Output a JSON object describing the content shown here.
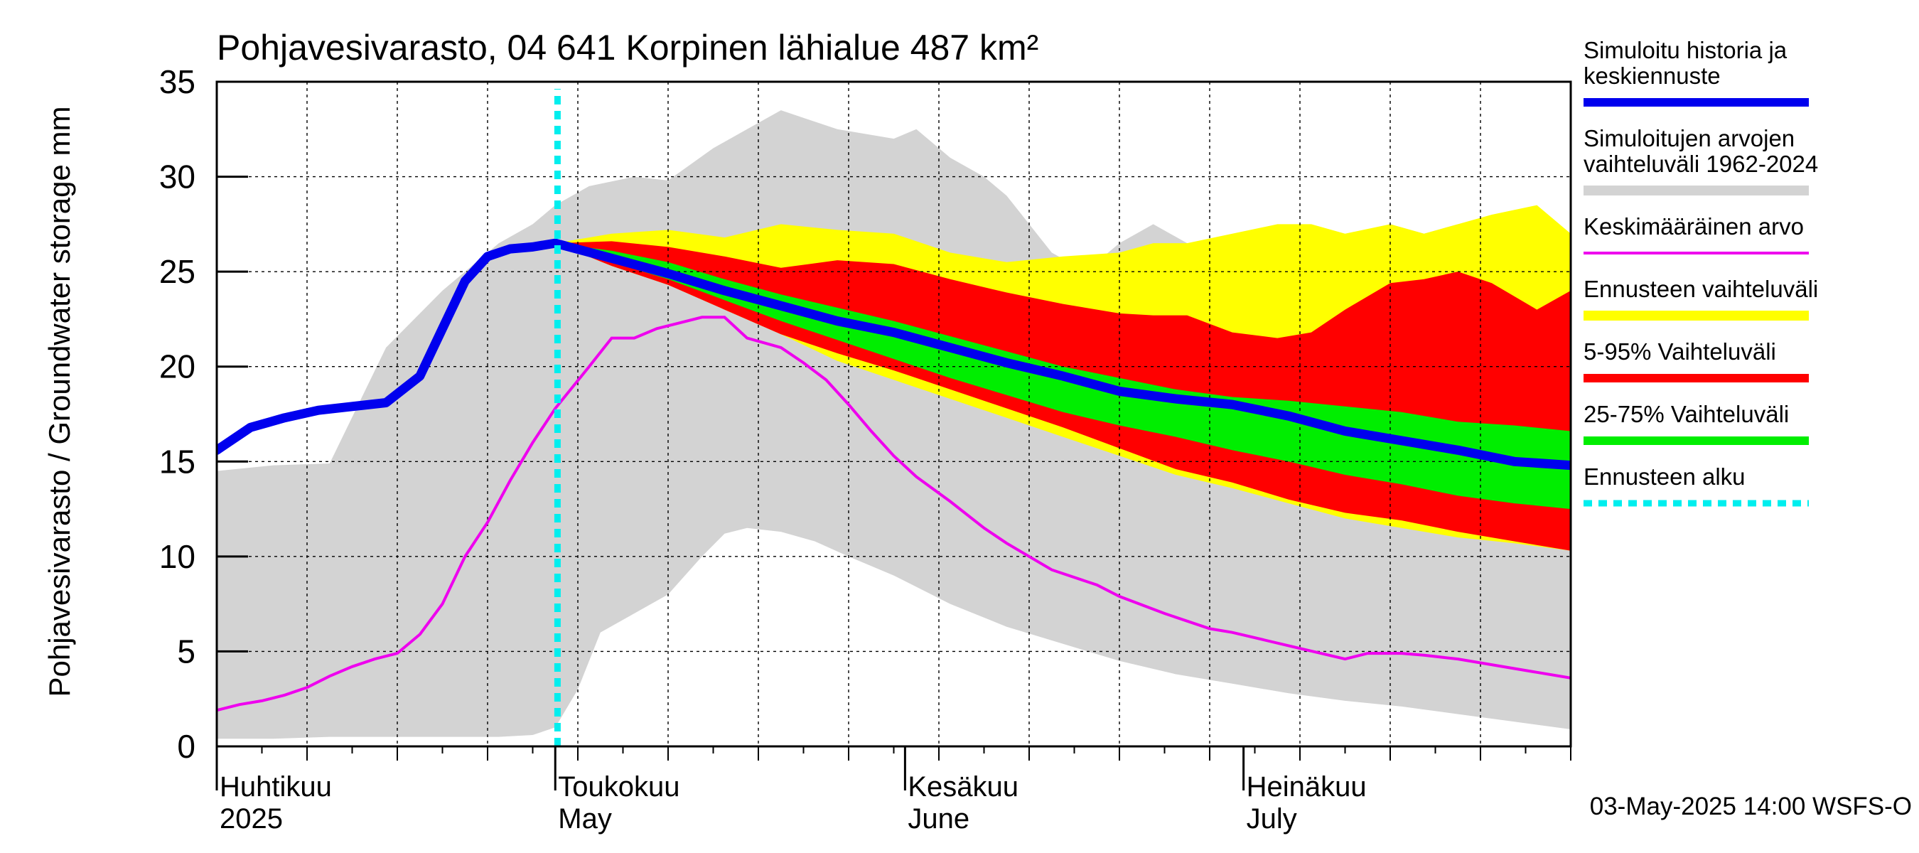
{
  "chart_data": {
    "type": "area",
    "title": "Pohjavesivarasto, 04 641 Korpinen lähialue 487 km²",
    "ylabel": "Pohjavesivarasto / Groundwater storage   mm",
    "ylim": [
      0,
      35
    ],
    "yticks": [
      0,
      5,
      10,
      15,
      20,
      25,
      30,
      35
    ],
    "xlim_day": [
      0,
      120
    ],
    "month_labels": [
      {
        "fi": "Huhtikuu",
        "en": "2025",
        "day": 0
      },
      {
        "fi": "Toukokuu",
        "en": "May",
        "day": 30
      },
      {
        "fi": "Kesäkuu",
        "en": "June",
        "day": 61
      },
      {
        "fi": "Heinäkuu",
        "en": "July",
        "day": 91
      }
    ],
    "forecast_start_day": 30.2,
    "footer": "03-May-2025 14:00 WSFS-O",
    "colors": {
      "history": "#0000ee",
      "range": "#d3d3d3",
      "mean": "#ee00ee",
      "forecast_range": "#ffff00",
      "p5_95": "#ff0000",
      "p25_75": "#00ee00",
      "forecast_start": "#00eeee",
      "grid": "#000000"
    },
    "legend": [
      {
        "label": "Simuloitu historia ja keskiennuste",
        "lines": [
          "Simuloitu historia ja",
          "keskiennuste"
        ],
        "color": "#0000ee",
        "style": "thick"
      },
      {
        "label": "Simuloitujen arvojen vaihteluväli 1962-2024",
        "lines": [
          "Simuloitujen arvojen",
          "vaihteluväli 1962-2024"
        ],
        "color": "#d3d3d3",
        "style": "band"
      },
      {
        "label": "Keskimääräinen arvo",
        "lines": [
          "Keskimääräinen arvo"
        ],
        "color": "#ee00ee",
        "style": "thin"
      },
      {
        "label": "Ennusteen vaihteluväli",
        "lines": [
          "Ennusteen vaihteluväli"
        ],
        "color": "#ffff00",
        "style": "band"
      },
      {
        "label": "5-95% Vaihteluväli",
        "lines": [
          "5-95% Vaihteluväli"
        ],
        "color": "#ff0000",
        "style": "thick"
      },
      {
        "label": "25-75% Vaihteluväli",
        "lines": [
          "25-75% Vaihteluväli"
        ],
        "color": "#00ee00",
        "style": "thick"
      },
      {
        "label": "Ennusteen alku",
        "lines": [
          "Ennusteen alku"
        ],
        "color": "#00eeee",
        "style": "dotted"
      }
    ],
    "series": {
      "range_upper": {
        "x": [
          0,
          5,
          10,
          15,
          20,
          25,
          28,
          30,
          33,
          37,
          40,
          44,
          47,
          50,
          55,
          60,
          62,
          65,
          68,
          70,
          74,
          77,
          80,
          83,
          86,
          90,
          94,
          97,
          100,
          104,
          107,
          110,
          113,
          117,
          120
        ],
        "y": [
          14.5,
          14.8,
          14.9,
          21,
          24,
          26.5,
          27.5,
          28.5,
          29.5,
          30,
          29.8,
          31.5,
          32.5,
          33.5,
          32.5,
          32,
          32.5,
          31,
          30,
          29,
          26,
          25,
          26.5,
          27.5,
          26.5,
          26,
          24,
          22,
          25,
          27.5,
          27,
          27.5,
          27.5,
          27.5,
          26.5
        ]
      },
      "range_lower": {
        "x": [
          0,
          5,
          10,
          15,
          20,
          25,
          28,
          30,
          32,
          34,
          37,
          40,
          43,
          45,
          47,
          50,
          53,
          56,
          60,
          65,
          70,
          75,
          80,
          85,
          90,
          95,
          100,
          105,
          110,
          115,
          120
        ],
        "y": [
          0.4,
          0.4,
          0.5,
          0.5,
          0.5,
          0.5,
          0.6,
          1,
          3,
          6,
          7,
          8,
          10,
          11.2,
          11.5,
          11.3,
          10.8,
          10,
          9,
          7.5,
          6.3,
          5.4,
          4.5,
          3.8,
          3.3,
          2.8,
          2.4,
          2.1,
          1.7,
          1.3,
          0.9
        ]
      },
      "forecast_upper": {
        "x": [
          30,
          35,
          40,
          45,
          50,
          55,
          60,
          65,
          70,
          75,
          80,
          83,
          86,
          90,
          94,
          97,
          100,
          104,
          107,
          110,
          113,
          117,
          120
        ],
        "y": [
          26.5,
          27,
          27.2,
          26.8,
          27.5,
          27.2,
          27,
          26,
          25.5,
          25.8,
          26,
          26.5,
          26.5,
          27,
          27.5,
          27.5,
          27,
          27.5,
          27,
          27.5,
          28,
          28.5,
          27
        ]
      },
      "p95": {
        "x": [
          30,
          35,
          40,
          45,
          50,
          55,
          60,
          65,
          70,
          75,
          80,
          83,
          86,
          90,
          94,
          97,
          100,
          104,
          107,
          110,
          113,
          117,
          120
        ],
        "y": [
          26.5,
          26.6,
          26.3,
          25.8,
          25.2,
          25.6,
          25.4,
          24.6,
          23.9,
          23.3,
          22.8,
          22.7,
          22.7,
          21.8,
          21.5,
          21.8,
          23.0,
          24.4,
          24.6,
          25.0,
          24.4,
          23.0,
          24.0
        ]
      },
      "p75": {
        "x": [
          30,
          35,
          40,
          45,
          50,
          55,
          60,
          65,
          70,
          75,
          80,
          85,
          90,
          95,
          100,
          105,
          110,
          115,
          120
        ],
        "y": [
          26.5,
          26.1,
          25.5,
          24.6,
          23.8,
          23.1,
          22.4,
          21.6,
          20.8,
          20.0,
          19.4,
          18.8,
          18.4,
          18.2,
          17.9,
          17.6,
          17.1,
          16.9,
          16.6
        ]
      },
      "median": {
        "x": [
          0,
          3,
          6,
          9,
          12,
          15,
          18,
          20,
          22,
          24,
          26,
          28,
          30,
          35,
          40,
          45,
          50,
          55,
          60,
          65,
          70,
          75,
          80,
          85,
          90,
          95,
          100,
          105,
          110,
          115,
          120
        ],
        "y": [
          15.6,
          16.8,
          17.3,
          17.7,
          17.9,
          18.1,
          19.5,
          22.0,
          24.5,
          25.8,
          26.2,
          26.3,
          26.5,
          25.7,
          24.9,
          24.0,
          23.2,
          22.4,
          21.8,
          21.0,
          20.2,
          19.5,
          18.7,
          18.3,
          18.0,
          17.4,
          16.6,
          16.1,
          15.6,
          15.0,
          14.8
        ]
      },
      "p25": {
        "x": [
          30,
          35,
          40,
          45,
          50,
          55,
          60,
          65,
          70,
          75,
          80,
          85,
          90,
          95,
          100,
          105,
          110,
          115,
          120
        ],
        "y": [
          26.5,
          25.5,
          24.6,
          23.5,
          22.4,
          21.4,
          20.4,
          19.4,
          18.5,
          17.6,
          16.9,
          16.3,
          15.6,
          15.0,
          14.3,
          13.8,
          13.2,
          12.8,
          12.5
        ]
      },
      "p5": {
        "x": [
          30,
          35,
          40,
          45,
          50,
          55,
          60,
          65,
          70,
          75,
          80,
          85,
          90,
          95,
          100,
          105,
          110,
          115,
          120
        ],
        "y": [
          26.5,
          25.3,
          24.3,
          23.0,
          21.7,
          20.7,
          19.8,
          18.8,
          17.8,
          16.8,
          15.7,
          14.6,
          13.9,
          13.0,
          12.3,
          11.9,
          11.3,
          10.8,
          10.3
        ]
      },
      "forecast_lower": {
        "x": [
          30,
          35,
          40,
          45,
          50,
          55,
          60,
          65,
          70,
          75,
          80,
          85,
          90,
          95,
          100,
          105,
          110,
          115,
          120
        ],
        "y": [
          26.5,
          25.3,
          24.3,
          23.0,
          21.7,
          20.3,
          19.3,
          18.3,
          17.3,
          16.3,
          15.3,
          14.3,
          13.6,
          12.8,
          12.0,
          11.5,
          11.0,
          10.7,
          10.3
        ]
      },
      "mean": {
        "x": [
          0,
          2,
          4,
          6,
          8,
          10,
          12,
          14,
          16,
          18,
          20,
          22,
          24,
          26,
          28,
          30,
          33,
          35,
          37,
          39,
          41,
          43,
          45,
          47,
          50,
          52,
          54,
          56,
          58,
          60,
          62,
          65,
          68,
          70,
          74,
          78,
          80,
          84,
          88,
          90,
          95,
          100,
          102,
          105,
          107,
          110,
          115,
          120
        ],
        "y": [
          1.9,
          2.2,
          2.4,
          2.7,
          3.1,
          3.7,
          4.2,
          4.6,
          4.9,
          5.9,
          7.5,
          10,
          11.8,
          14,
          16,
          17.8,
          20,
          21.5,
          21.5,
          22,
          22.3,
          22.6,
          22.6,
          21.5,
          21,
          20.2,
          19.3,
          18,
          16.6,
          15.3,
          14.2,
          12.9,
          11.5,
          10.7,
          9.3,
          8.5,
          7.9,
          7,
          6.2,
          6,
          5.3,
          4.6,
          4.9,
          4.9,
          4.8,
          4.6,
          4.1,
          3.6
        ]
      }
    }
  }
}
